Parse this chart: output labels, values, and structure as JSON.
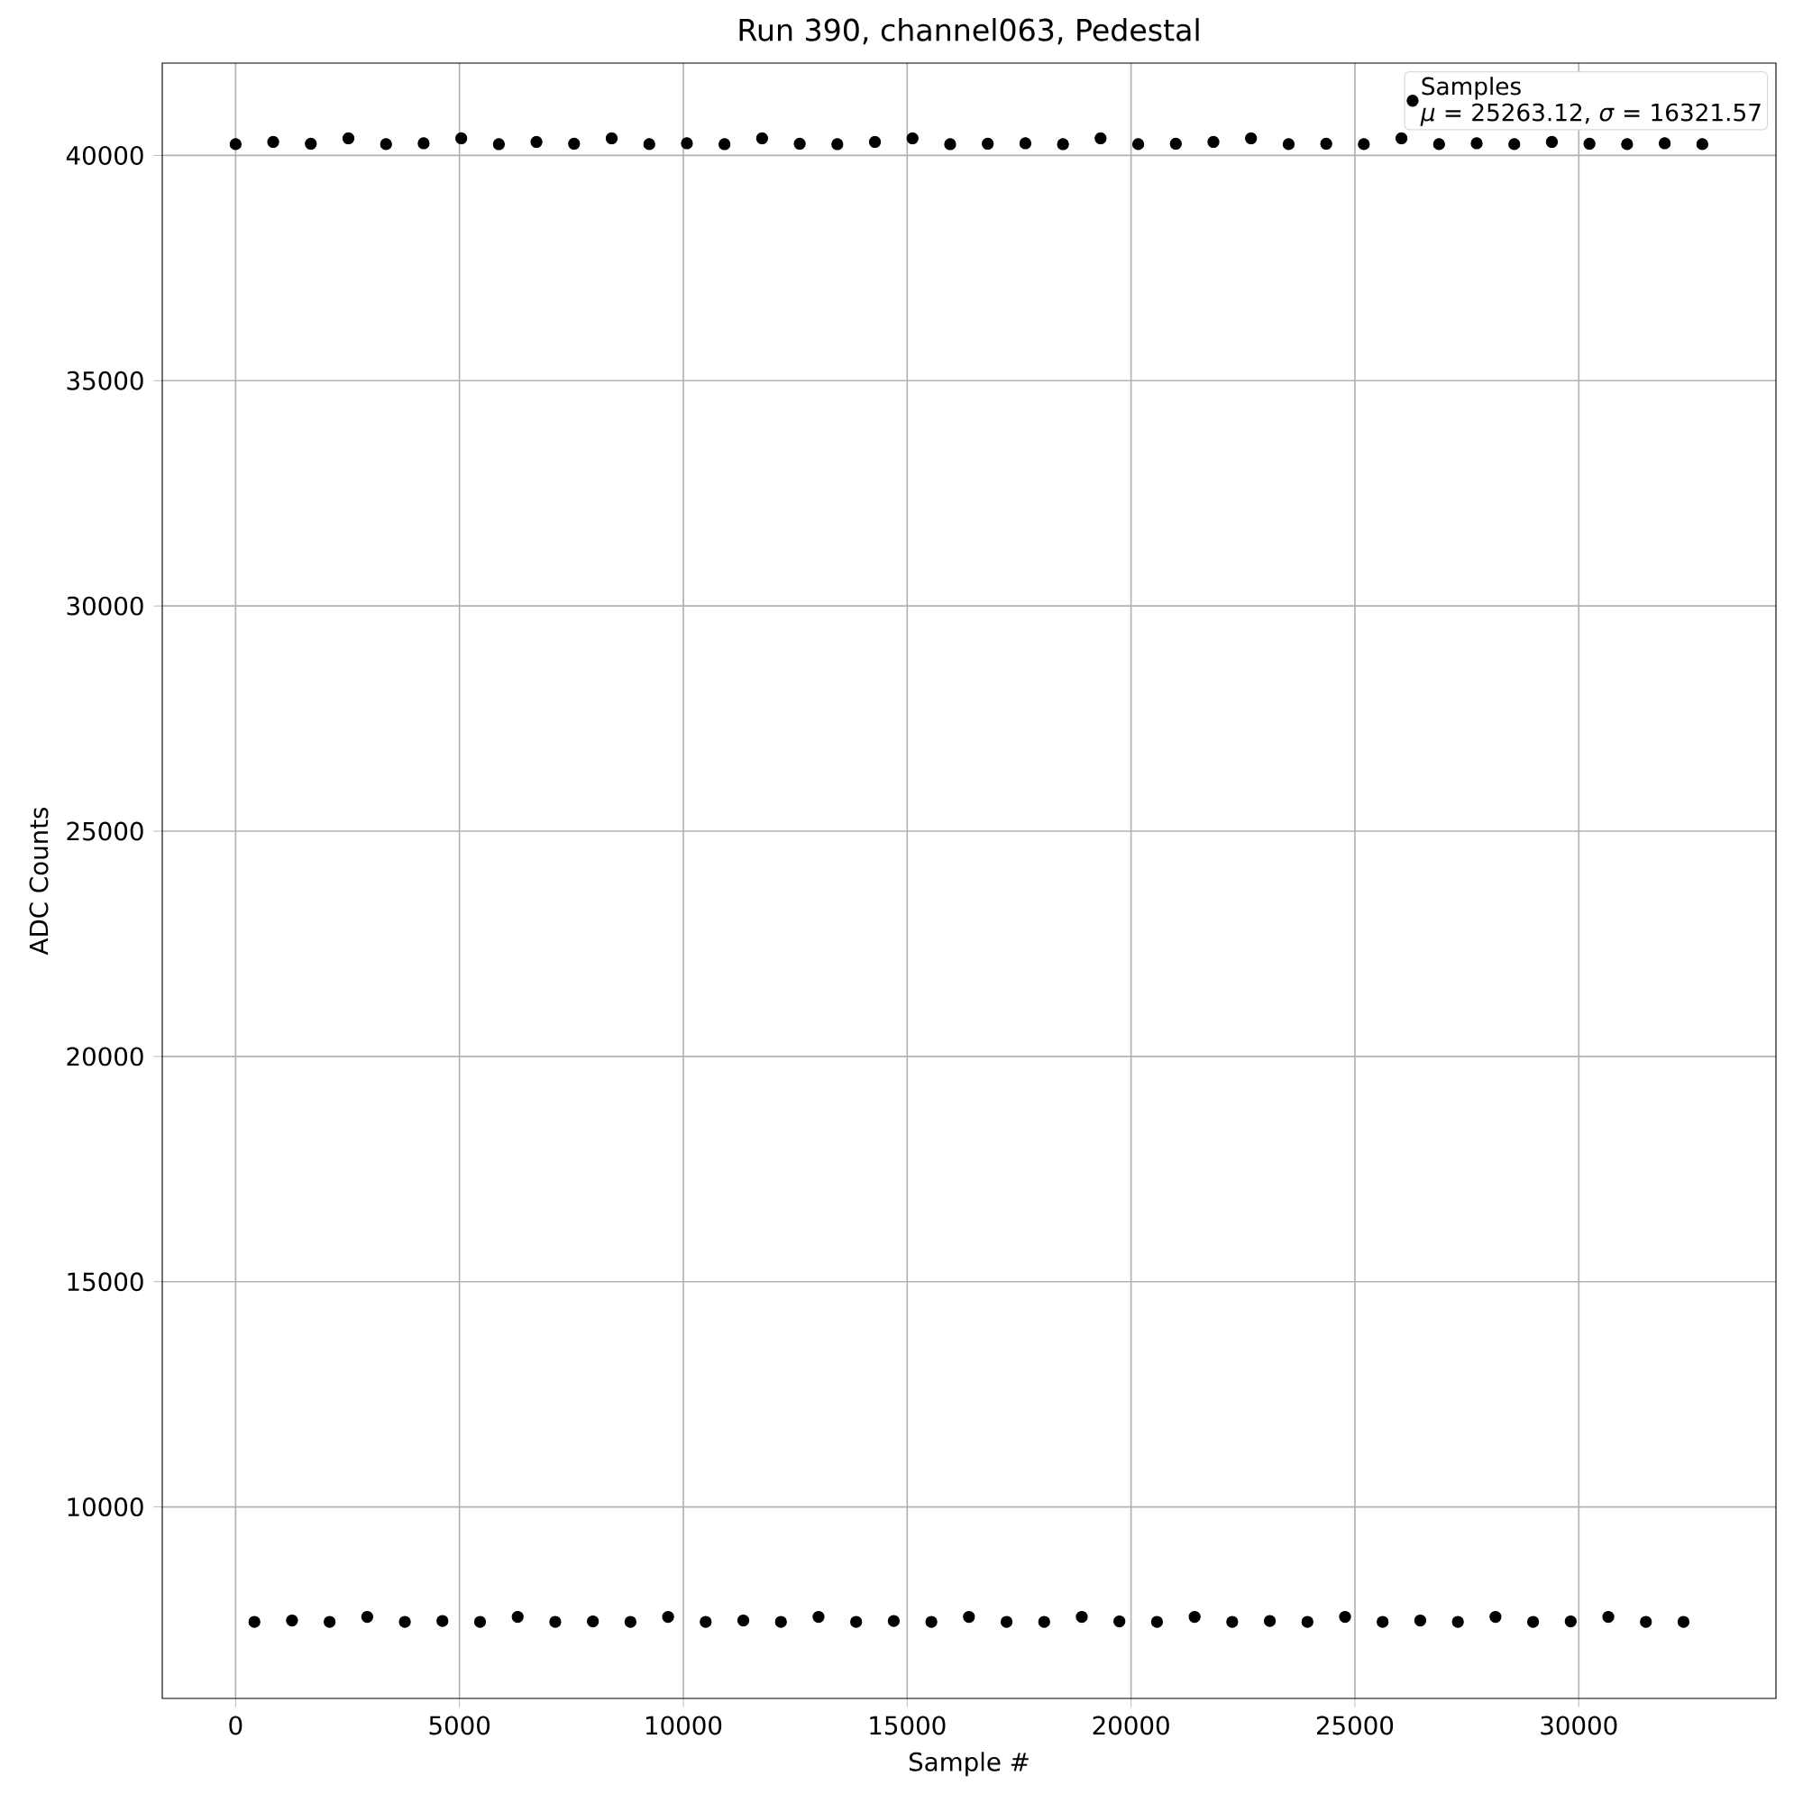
{
  "chart_data": {
    "type": "scatter",
    "title": "Run 390, channel063, Pedestal",
    "xlabel": "Sample #",
    "ylabel": "ADC Counts",
    "annotations": [
      "*μ* = 25263.12, *σ* = 16321.57"
    ],
    "series": [
      {
        "name": "Samples",
        "color": "#000000",
        "x": [
          0,
          420,
          840,
          1260,
          1680,
          2100,
          2520,
          2940,
          3360,
          3780,
          4200,
          4620,
          5040,
          5460,
          5880,
          6300,
          6720,
          7140,
          7560,
          7980,
          8400,
          8820,
          9240,
          9660,
          10080,
          10500,
          10920,
          11340,
          11760,
          12180,
          12600,
          13020,
          13440,
          13860,
          14280,
          14700,
          15120,
          15540,
          15960,
          16380,
          16800,
          17220,
          17640,
          18060,
          18480,
          18900,
          19320,
          19740,
          20160,
          20580,
          21000,
          21420,
          21840,
          22260,
          22680,
          23100,
          23520,
          23940,
          24360,
          24780,
          25200,
          25620,
          26040,
          26460,
          26880,
          27300,
          27720,
          28140,
          28560,
          28980,
          29400,
          29820,
          30240,
          30660,
          31080,
          31500,
          31920,
          32340,
          32760
        ],
        "values": [
          40250,
          7450,
          40300,
          7480,
          40260,
          7450,
          40380,
          7560,
          40250,
          7450,
          40270,
          7470,
          40380,
          7450,
          40250,
          7560,
          40300,
          7450,
          40260,
          7460,
          40380,
          7450,
          40250,
          7560,
          40270,
          7450,
          40250,
          7480,
          40380,
          7450,
          40260,
          7560,
          40250,
          7450,
          40300,
          7470,
          40380,
          7450,
          40250,
          7560,
          40260,
          7450,
          40270,
          7450,
          40250,
          7560,
          40380,
          7460,
          40250,
          7450,
          40260,
          7560,
          40300,
          7450,
          40380,
          7470,
          40250,
          7450,
          40260,
          7560,
          40250,
          7450,
          40380,
          7480,
          40250,
          7450,
          40270,
          7560,
          40250,
          7450,
          40300,
          7460,
          40260,
          7560,
          40250,
          7450,
          40270,
          7450,
          40250
        ]
      }
    ],
    "xlim": [
      -1638,
      34405
    ],
    "ylim": [
      5750,
      42050
    ],
    "xticks": [
      0,
      5000,
      10000,
      15000,
      20000,
      25000,
      30000
    ],
    "yticks": [
      10000,
      15000,
      20000,
      25000,
      30000,
      35000,
      40000
    ],
    "grid": true,
    "legend": "top right",
    "marker": "circle"
  }
}
